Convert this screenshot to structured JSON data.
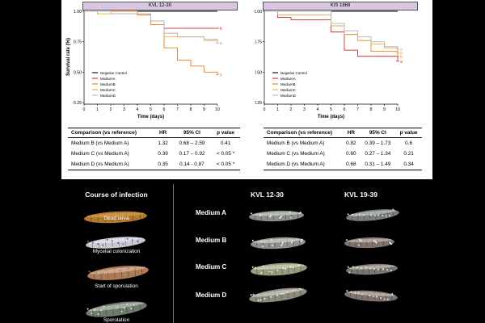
{
  "chart_data": [
    {
      "type": "line",
      "title": "KVL 12-30",
      "xlabel": "Time (days)",
      "ylabel": "Survival rate (%)",
      "x": [
        0,
        1,
        2,
        3,
        4,
        5,
        6,
        7,
        8,
        9,
        10
      ],
      "xlim": [
        0,
        10
      ],
      "ylim": [
        0.25,
        1.0
      ],
      "yticks": [
        "0.25",
        "0.50",
        "0.75",
        "1.00"
      ],
      "legend": [
        "Negative Control",
        "MediumA",
        "MediumB",
        "MediumC",
        "MediumD"
      ],
      "end_labels": [
        "b",
        "b",
        "a",
        "a"
      ],
      "series": [
        {
          "name": "Negative Control",
          "color": "#000000",
          "values": [
            1,
            1,
            1,
            1,
            1,
            1,
            1,
            1,
            1,
            1,
            1
          ]
        },
        {
          "name": "MediumA",
          "color": "#d62a2a",
          "values": [
            1,
            1,
            1,
            1,
            0.97,
            0.92,
            0.86,
            0.86,
            0.86,
            0.86,
            0.86
          ]
        },
        {
          "name": "MediumB",
          "color": "#ef7a1c",
          "values": [
            1,
            1,
            1,
            1,
            0.97,
            0.89,
            0.7,
            0.6,
            0.55,
            0.5,
            0.48
          ]
        },
        {
          "name": "MediumC",
          "color": "#e3a93d",
          "values": [
            1,
            0.98,
            0.98,
            0.98,
            0.98,
            0.92,
            0.79,
            0.79,
            0.79,
            0.76,
            0.74
          ]
        },
        {
          "name": "MediumD",
          "color": "#b3b3b3",
          "values": [
            1,
            1,
            0.98,
            0.98,
            0.98,
            0.92,
            0.82,
            0.79,
            0.79,
            0.77,
            0.74
          ]
        }
      ]
    },
    {
      "type": "line",
      "title": "KIS 1868",
      "xlabel": "Time (days)",
      "ylabel": "",
      "x": [
        0,
        1,
        2,
        3,
        4,
        5,
        6,
        7,
        8,
        9,
        10
      ],
      "xlim": [
        0,
        10
      ],
      "ylim": [
        0.25,
        1.0
      ],
      "yticks": [
        "0.25",
        "0.50",
        "0.75",
        "1.00"
      ],
      "legend": [
        "Negative Control",
        "MediumA",
        "MediumB",
        "MediumC",
        "MediumD"
      ],
      "end_labels": [
        "a",
        "a",
        "a",
        "a"
      ],
      "series": [
        {
          "name": "Negative Control",
          "color": "#000000",
          "values": [
            1,
            1,
            1,
            1,
            1,
            1,
            1,
            1,
            1,
            1,
            1
          ]
        },
        {
          "name": "MediumA",
          "color": "#d62a2a",
          "values": [
            1,
            0.95,
            0.93,
            0.93,
            0.93,
            0.83,
            0.68,
            0.63,
            0.63,
            0.63,
            0.59
          ]
        },
        {
          "name": "MediumB",
          "color": "#ef7a1c",
          "values": [
            1,
            1,
            1,
            1,
            1,
            0.88,
            0.81,
            0.76,
            0.67,
            0.67,
            0.63
          ]
        },
        {
          "name": "MediumC",
          "color": "#e3a93d",
          "values": [
            1,
            0.97,
            0.97,
            0.97,
            0.97,
            0.88,
            0.81,
            0.76,
            0.73,
            0.7,
            0.66
          ]
        },
        {
          "name": "MediumD",
          "color": "#b3b3b3",
          "values": [
            1,
            1,
            1,
            1,
            1,
            0.9,
            0.84,
            0.79,
            0.75,
            0.71,
            0.69
          ]
        }
      ]
    }
  ],
  "tables": [
    {
      "headers": [
        "Comparison (vs reference)",
        "HR",
        "95% CI",
        "p value"
      ],
      "rows": [
        [
          "Medium B (vs Medium A)",
          "1.32",
          "0.68 – 2.59",
          "0.41"
        ],
        [
          "Medium C (vs Medium A)",
          "0.39",
          "0.17 – 0.92",
          "< 0.05 *"
        ],
        [
          "Medium D (vs Medium A)",
          "0.35",
          "0.14 - 0.87",
          "< 0.05 *"
        ]
      ]
    },
    {
      "headers": [
        "Comparison (vs reference)",
        "HR",
        "95% CI",
        "p value"
      ],
      "rows": [
        [
          "Medium B (vs Medium A)",
          "0.82",
          "0.39 – 1.73",
          "0.6"
        ],
        [
          "Medium C (vs Medium A)",
          "0.60",
          "0.27 – 1.34",
          "0.21"
        ],
        [
          "Medium D (vs Medium A)",
          "0.68",
          "0.31 – 1.49",
          "0.34"
        ]
      ]
    }
  ],
  "infection": {
    "title": "Course of infection",
    "stages": [
      "Dead larva",
      "Mycelial colonization",
      "Start of sporulation",
      "Sporulation"
    ]
  },
  "mediums": {
    "strains": [
      "KVL 12-30",
      "KVL 19-39"
    ],
    "rows": [
      "Medium A",
      "Medium B",
      "Medium C",
      "Medium D"
    ]
  }
}
